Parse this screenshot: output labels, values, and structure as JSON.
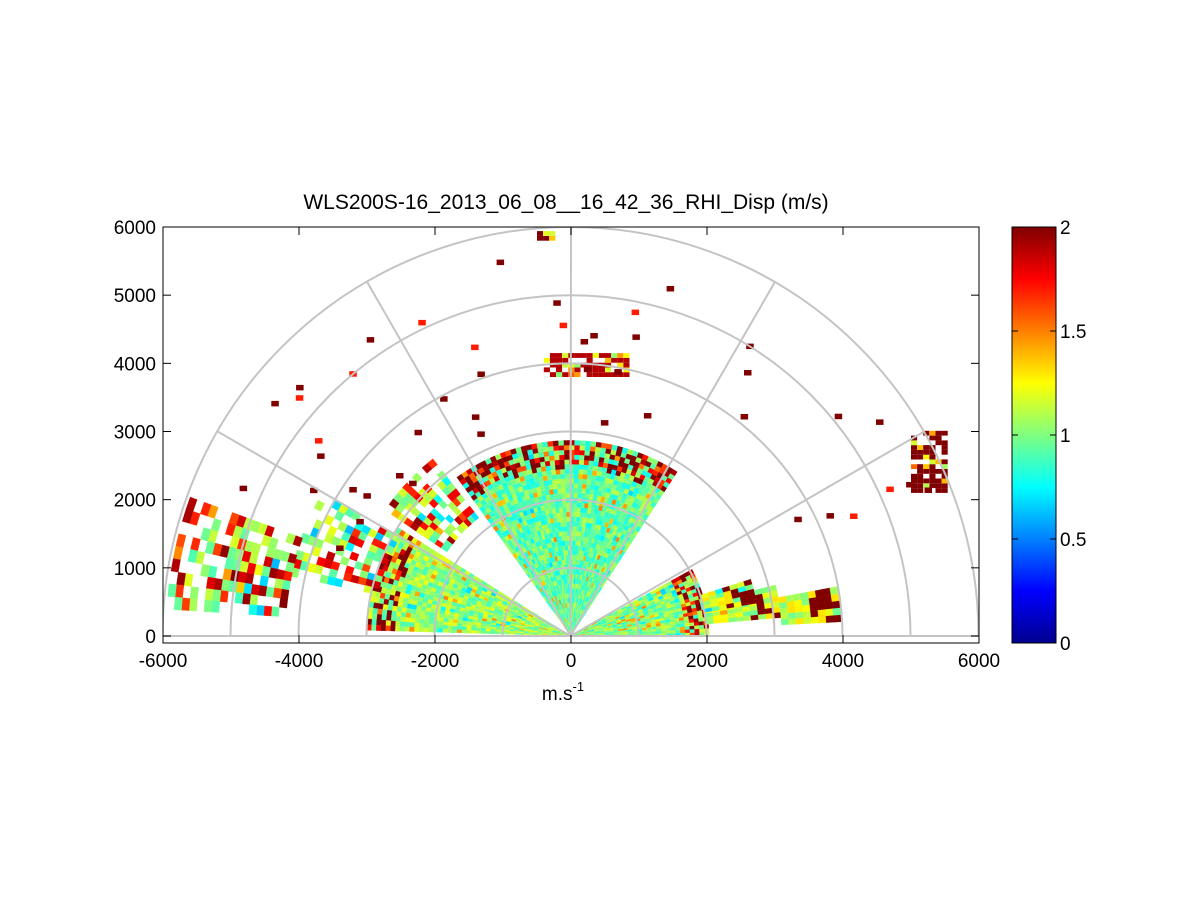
{
  "chart_data": {
    "type": "heatmap",
    "subtype": "polar-rhi-sector",
    "title": "WLS200S-16_2013_06_08__16_42_36_RHI_Disp (m/s)",
    "xlabel_base": "m.s",
    "xlabel_exp": "-1",
    "ylabel": "",
    "xlim": [
      -6000,
      6000
    ],
    "ylim": [
      -100,
      6000
    ],
    "x_ticks": [
      "-6000",
      "-4000",
      "-2000",
      "0",
      "2000",
      "4000",
      "6000"
    ],
    "y_ticks": [
      "0",
      "1000",
      "2000",
      "3000",
      "4000",
      "5000",
      "6000"
    ],
    "polar_grid": {
      "ring_radii": [
        1000,
        2000,
        3000,
        4000,
        5000,
        6000
      ],
      "spoke_angles_deg": [
        0,
        30,
        60,
        90,
        120,
        150,
        180
      ]
    },
    "colorbar": {
      "min": 0,
      "max": 2,
      "colormap": "jet",
      "tick_labels": [
        "0",
        "0.5",
        "1",
        "1.5",
        "2"
      ],
      "tick_values": [
        0,
        0.5,
        1,
        1.5,
        2
      ]
    },
    "sectors": [
      {
        "name": "east-low",
        "angle_from_deg": 0,
        "angle_to_deg": 28,
        "r_from": 0,
        "r_to": 2000,
        "typical_value": 1.0
      },
      {
        "name": "west-low",
        "angle_from_deg": 148,
        "angle_to_deg": 178,
        "r_from": 0,
        "r_to": 3000,
        "typical_value": 1.05
      },
      {
        "name": "central-cone",
        "angle_from_deg": 57,
        "angle_to_deg": 125,
        "r_from": 0,
        "r_to": 2850,
        "typical_value": 0.95
      }
    ],
    "high_value_features": [
      {
        "name": "cloud-layer-4000m",
        "x_range": [
          -400,
          800
        ],
        "y_range": [
          3800,
          4100
        ],
        "value": 1.9
      },
      {
        "name": "east-streak",
        "x_range": [
          5000,
          5500
        ],
        "y_range": [
          2100,
          3000
        ],
        "value": 2.0
      },
      {
        "name": "top-returns-5800m",
        "x_range": [
          -500,
          -300
        ],
        "y_range": [
          5800,
          5900
        ],
        "value": 2.0
      }
    ]
  }
}
